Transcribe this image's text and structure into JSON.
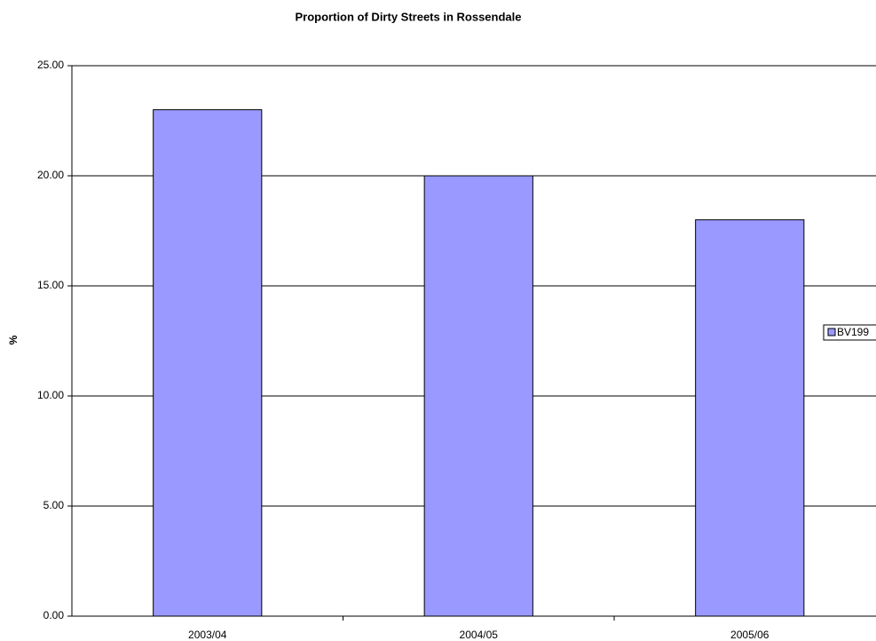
{
  "chart_data": {
    "type": "bar",
    "title": "Proportion of Dirty Streets in Rossendale",
    "y_label": "%",
    "categories": [
      "2003/04",
      "2004/05",
      "2005/06"
    ],
    "series": [
      {
        "name": "BV199",
        "color": "#9999ff",
        "values": [
          23,
          20,
          18
        ]
      }
    ],
    "ylim": [
      0,
      25
    ],
    "yticks": [
      {
        "value": 0,
        "label": "0.00"
      },
      {
        "value": 5,
        "label": "5.00"
      },
      {
        "value": 10,
        "label": "10.00"
      },
      {
        "value": 15,
        "label": "15.00"
      },
      {
        "value": 20,
        "label": "20.00"
      },
      {
        "value": 25,
        "label": "25.00"
      }
    ],
    "grid": true,
    "legend": "right"
  }
}
